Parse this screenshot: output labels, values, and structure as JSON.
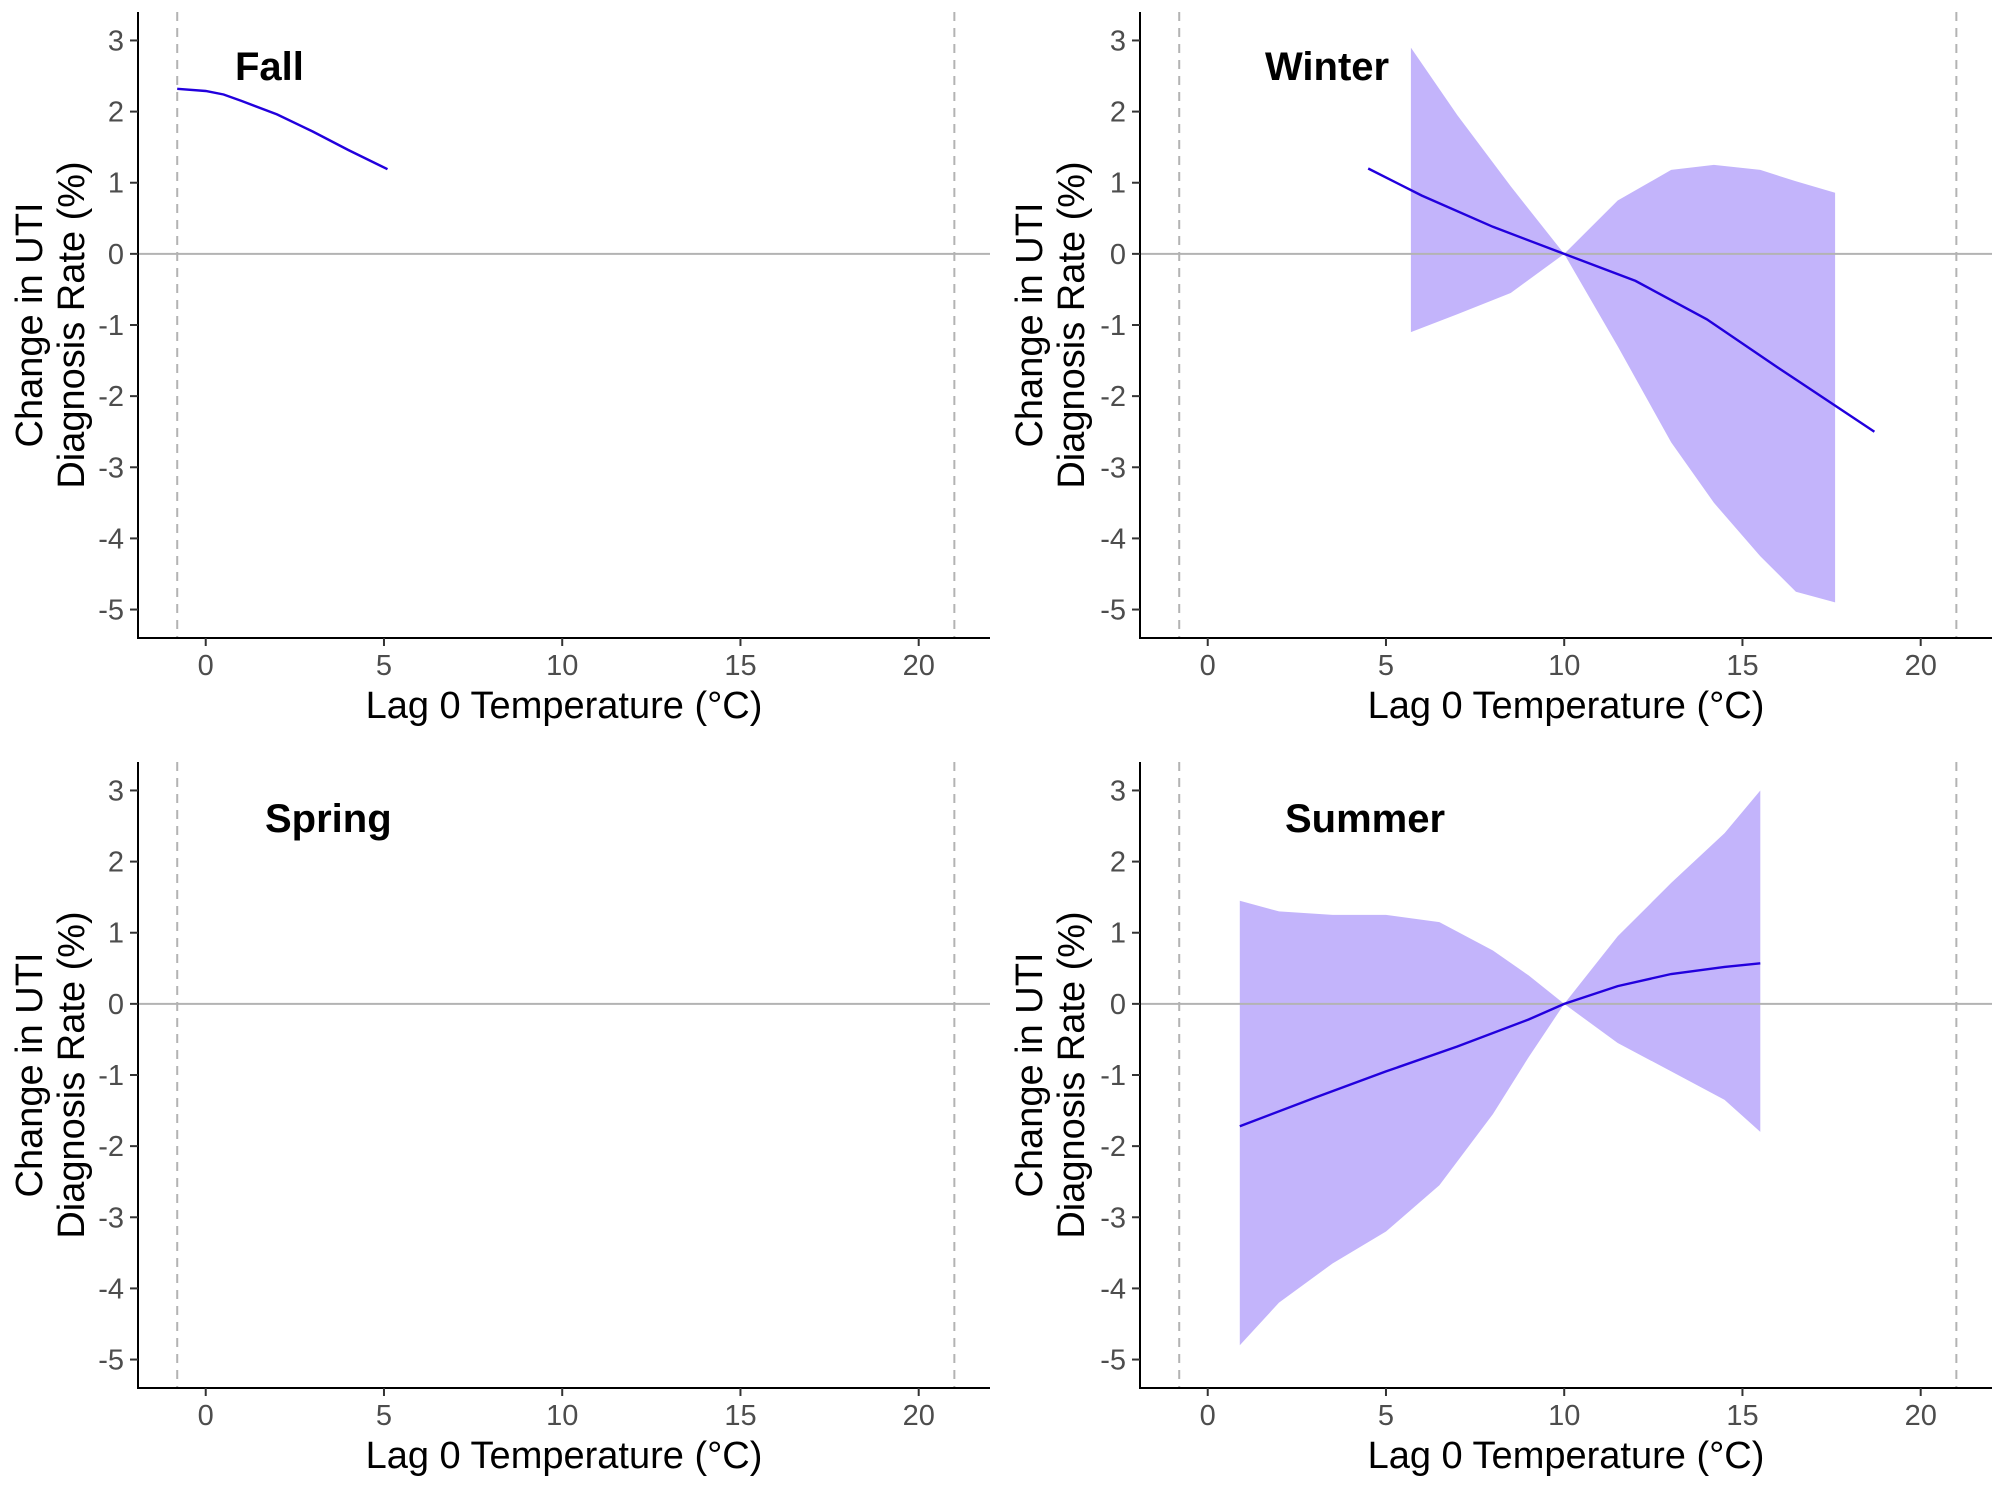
{
  "colors": {
    "line": "#2200dd",
    "band": "#c3b4fb",
    "zero_line": "#b3b3b3",
    "ref_line": "#b3b3b3",
    "axis": "#000000",
    "tick_label": "#4d4d4d"
  },
  "chart_data": [
    {
      "type": "line",
      "title": "Fall",
      "xlabel": "Lag 0 Temperature (°C)",
      "ylabel_lines": [
        "Change in UTI",
        "Diagnosis Rate (%)"
      ],
      "xlim": [
        -1.9,
        22
      ],
      "ylim": [
        -5.4,
        3.4
      ],
      "xticks": [
        0,
        5,
        10,
        15,
        20
      ],
      "yticks": [
        3,
        2,
        1,
        0,
        -1,
        -2,
        -3,
        -4,
        -5
      ],
      "reference_x": [
        -0.8,
        21
      ],
      "zero_line": 0,
      "series": [
        {
          "x": [
            -0.8,
            0.0,
            0.5,
            1.0,
            2.0,
            3.0,
            4.0,
            5.1
          ],
          "y": [
            2.32,
            2.29,
            2.24,
            2.15,
            1.96,
            1.72,
            1.46,
            1.19
          ]
        }
      ],
      "band": null
    },
    {
      "type": "area",
      "title": "Winter",
      "xlabel": "Lag 0 Temperature (°C)",
      "ylabel_lines": [
        "Change in UTI",
        "Diagnosis Rate (%)"
      ],
      "xlim": [
        -1.9,
        22
      ],
      "ylim": [
        -5.4,
        3.4
      ],
      "xticks": [
        0,
        5,
        10,
        15,
        20
      ],
      "yticks": [
        3,
        2,
        1,
        0,
        -1,
        -2,
        -3,
        -4,
        -5
      ],
      "reference_x": [
        -0.8,
        21
      ],
      "zero_line": 0,
      "series": [
        {
          "x": [
            4.5,
            6.0,
            8.0,
            10.0,
            12.0,
            14.0,
            16.0,
            18.7
          ],
          "y": [
            1.2,
            0.82,
            0.38,
            0.0,
            -0.38,
            -0.92,
            -1.6,
            -2.5
          ]
        }
      ],
      "band": {
        "x": [
          5.7,
          7.0,
          8.5,
          10.0,
          11.5,
          13.0,
          14.2,
          15.5,
          16.5,
          17.6
        ],
        "upper": [
          2.9,
          1.95,
          0.95,
          0.0,
          0.75,
          1.18,
          1.25,
          1.18,
          1.02,
          0.86
        ],
        "lower": [
          -1.1,
          -0.85,
          -0.55,
          0.0,
          -1.3,
          -2.65,
          -3.5,
          -4.25,
          -4.75,
          -4.9
        ]
      }
    },
    {
      "type": "line",
      "title": "Spring",
      "xlabel": "Lag 0 Temperature (°C)",
      "ylabel_lines": [
        "Change in UTI",
        "Diagnosis Rate (%)"
      ],
      "xlim": [
        -1.9,
        22
      ],
      "ylim": [
        -5.4,
        3.4
      ],
      "xticks": [
        0,
        5,
        10,
        15,
        20
      ],
      "yticks": [
        3,
        2,
        1,
        0,
        -1,
        -2,
        -3,
        -4,
        -5
      ],
      "reference_x": [
        -0.8,
        21
      ],
      "zero_line": 0,
      "series": [],
      "band": null
    },
    {
      "type": "area",
      "title": "Summer",
      "xlabel": "Lag 0 Temperature (°C)",
      "ylabel_lines": [
        "Change in UTI",
        "Diagnosis Rate (%)"
      ],
      "xlim": [
        -1.9,
        22
      ],
      "ylim": [
        -5.4,
        3.4
      ],
      "xticks": [
        0,
        5,
        10,
        15,
        20
      ],
      "yticks": [
        3,
        2,
        1,
        0,
        -1,
        -2,
        -3,
        -4,
        -5
      ],
      "reference_x": [
        -0.8,
        21
      ],
      "zero_line": 0,
      "series": [
        {
          "x": [
            0.9,
            3.0,
            5.0,
            7.0,
            9.0,
            10.0,
            11.5,
            13.0,
            14.5,
            15.5
          ],
          "y": [
            -1.72,
            -1.32,
            -0.95,
            -0.6,
            -0.22,
            0.0,
            0.25,
            0.42,
            0.52,
            0.57
          ]
        }
      ],
      "band": {
        "x": [
          0.9,
          2.0,
          3.5,
          5.0,
          6.5,
          8.0,
          9.0,
          10.0,
          11.5,
          13.0,
          14.5,
          15.5
        ],
        "upper": [
          1.45,
          1.3,
          1.25,
          1.25,
          1.15,
          0.75,
          0.4,
          0.0,
          0.95,
          1.7,
          2.4,
          3.0
        ],
        "lower": [
          -4.8,
          -4.2,
          -3.65,
          -3.2,
          -2.55,
          -1.55,
          -0.75,
          0.0,
          -0.55,
          -0.95,
          -1.35,
          -1.8
        ]
      }
    }
  ]
}
